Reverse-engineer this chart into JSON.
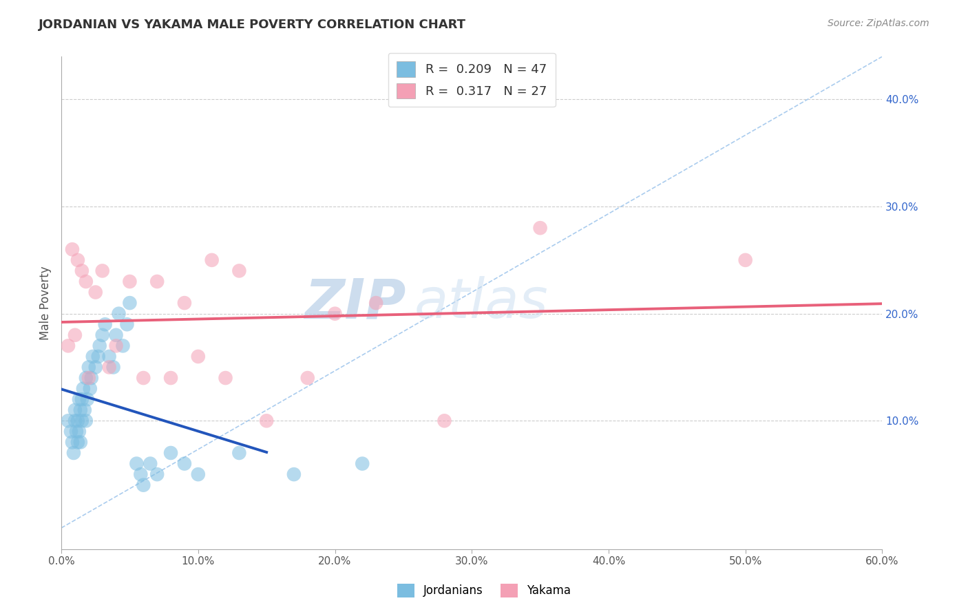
{
  "title": "JORDANIAN VS YAKAMA MALE POVERTY CORRELATION CHART",
  "source": "Source: ZipAtlas.com",
  "ylabel": "Male Poverty",
  "xlim": [
    0.0,
    0.6
  ],
  "ylim": [
    -0.02,
    0.44
  ],
  "xticks": [
    0.0,
    0.1,
    0.2,
    0.3,
    0.4,
    0.5,
    0.6
  ],
  "xticklabels": [
    "0.0%",
    "10.0%",
    "20.0%",
    "30.0%",
    "40.0%",
    "50.0%",
    "60.0%"
  ],
  "yticks_right": [
    0.1,
    0.2,
    0.3,
    0.4
  ],
  "ytick_labels_right": [
    "10.0%",
    "20.0%",
    "30.0%",
    "40.0%"
  ],
  "R_jordanian": 0.209,
  "N_jordanian": 47,
  "R_yakama": 0.317,
  "N_yakama": 27,
  "color_jordanian": "#7bbde0",
  "color_yakama": "#f4a0b5",
  "jordanian_x": [
    0.005,
    0.007,
    0.008,
    0.009,
    0.01,
    0.01,
    0.011,
    0.012,
    0.012,
    0.013,
    0.013,
    0.014,
    0.014,
    0.015,
    0.015,
    0.016,
    0.017,
    0.018,
    0.018,
    0.019,
    0.02,
    0.021,
    0.022,
    0.023,
    0.025,
    0.027,
    0.028,
    0.03,
    0.032,
    0.035,
    0.038,
    0.04,
    0.042,
    0.045,
    0.048,
    0.05,
    0.055,
    0.058,
    0.06,
    0.065,
    0.07,
    0.08,
    0.09,
    0.1,
    0.13,
    0.17,
    0.22
  ],
  "jordanian_y": [
    0.1,
    0.09,
    0.08,
    0.07,
    0.11,
    0.1,
    0.09,
    0.08,
    0.1,
    0.09,
    0.12,
    0.11,
    0.08,
    0.1,
    0.12,
    0.13,
    0.11,
    0.1,
    0.14,
    0.12,
    0.15,
    0.13,
    0.14,
    0.16,
    0.15,
    0.16,
    0.17,
    0.18,
    0.19,
    0.16,
    0.15,
    0.18,
    0.2,
    0.17,
    0.19,
    0.21,
    0.06,
    0.05,
    0.04,
    0.06,
    0.05,
    0.07,
    0.06,
    0.05,
    0.07,
    0.05,
    0.06
  ],
  "yakama_x": [
    0.005,
    0.008,
    0.01,
    0.012,
    0.015,
    0.018,
    0.02,
    0.025,
    0.03,
    0.035,
    0.04,
    0.05,
    0.06,
    0.07,
    0.08,
    0.09,
    0.1,
    0.11,
    0.12,
    0.13,
    0.15,
    0.18,
    0.2,
    0.23,
    0.28,
    0.35,
    0.5
  ],
  "yakama_y": [
    0.17,
    0.26,
    0.18,
    0.25,
    0.24,
    0.23,
    0.14,
    0.22,
    0.24,
    0.15,
    0.17,
    0.23,
    0.14,
    0.23,
    0.14,
    0.21,
    0.16,
    0.25,
    0.14,
    0.24,
    0.1,
    0.14,
    0.2,
    0.21,
    0.1,
    0.28,
    0.25
  ],
  "bg_color": "#ffffff",
  "grid_color": "#cccccc",
  "title_color": "#333333",
  "watermark_main": "ZIP",
  "watermark_secondary": "atlas",
  "watermark_color_main": "#c5ddf0",
  "watermark_color_secondary": "#c5ddf0"
}
